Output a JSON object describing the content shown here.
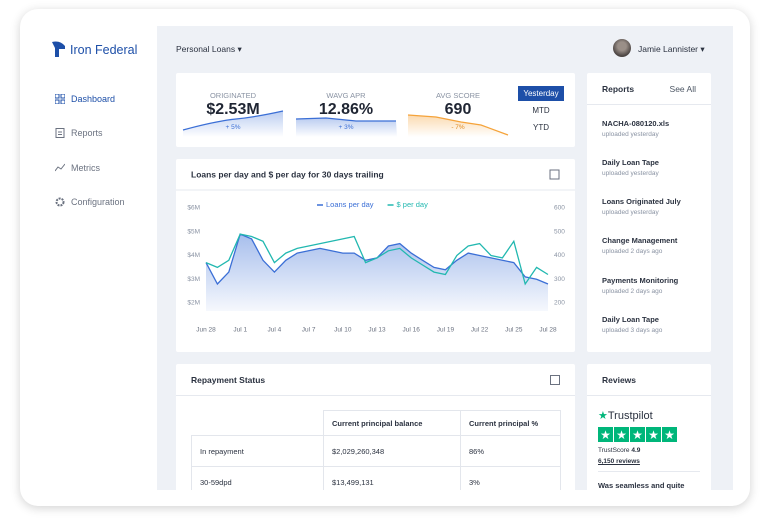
{
  "sidebar": {
    "brand": "Iron Federal",
    "nav": [
      "Dashboard",
      "Reports",
      "Metrics",
      "Configuration"
    ]
  },
  "topbar": {
    "product": "Personal Loans",
    "user": "Jamie Lannister"
  },
  "kpis": [
    {
      "label": "ORIGINATED",
      "value": "$2.53M",
      "change": "+ 5%"
    },
    {
      "label": "WAVG APR",
      "value": "12.86%",
      "change": "+ 3%"
    },
    {
      "label": "AVG SCORE",
      "value": "690",
      "change": "- 7%"
    }
  ],
  "periods": [
    "Yesterday",
    "MTD",
    "YTD"
  ],
  "chart_data": {
    "type": "line",
    "title": "Loans per day and $ per day for 30 days trailing",
    "categories": [
      "Jun 28",
      null,
      null,
      "Jul 1",
      null,
      null,
      "Jul 4",
      null,
      null,
      "Jul 7",
      null,
      null,
      "Jul 10",
      null,
      null,
      "Jul 13",
      null,
      null,
      "Jul 16",
      null,
      null,
      "Jul 19",
      null,
      null,
      "Jul 22",
      null,
      null,
      "Jul 25",
      null,
      null,
      "Jul 28"
    ],
    "series": [
      {
        "name": "Loans per day",
        "color": "#3b6fd6",
        "axis": "y2",
        "values": [
          370,
          280,
          330,
          490,
          470,
          380,
          330,
          380,
          410,
          420,
          430,
          420,
          410,
          410,
          380,
          390,
          440,
          450,
          410,
          380,
          350,
          340,
          380,
          410,
          400,
          390,
          380,
          370,
          310,
          300,
          280
        ]
      },
      {
        "name": "$ per day",
        "color": "#22b8b0",
        "values": [
          3.7,
          3.5,
          3.8,
          4.9,
          4.8,
          4.6,
          3.7,
          4.1,
          4.3,
          4.4,
          4.5,
          4.6,
          4.7,
          4.8,
          3.7,
          3.9,
          4.2,
          4.3,
          3.9,
          3.6,
          3.3,
          3.2,
          4.0,
          4.4,
          4.5,
          4.0,
          3.9,
          4.6,
          2.8,
          3.5,
          3.2
        ]
      }
    ],
    "ylim": [
      2,
      6
    ],
    "yticks": [
      {
        "value": 6,
        "label": "$6M"
      },
      {
        "value": 5,
        "label": "$5M"
      },
      {
        "value": 4,
        "label": "$4M"
      },
      {
        "value": 3,
        "label": "$3M"
      },
      {
        "value": 2,
        "label": "$2M"
      }
    ],
    "y2lim": [
      200,
      600
    ],
    "y2ticks": [
      600,
      500,
      400,
      300,
      200
    ],
    "grid": false
  },
  "repayment": {
    "title": "Repayment Status",
    "columns": [
      "Current principal balance",
      "Current principal %"
    ],
    "rows": [
      [
        "In repayment",
        "$2,029,260,348",
        "86%"
      ],
      [
        "30-59dpd",
        "$13,499,131",
        "3%"
      ]
    ]
  },
  "reports": {
    "title": "Reports",
    "link": "See All",
    "items": [
      {
        "name": "NACHA-080120.xls",
        "date": "uploaded yesterday"
      },
      {
        "name": "Daily Loan Tape",
        "date": "uploaded yesterday"
      },
      {
        "name": "Loans Originated July",
        "date": "uploaded yesterday"
      },
      {
        "name": "Change Management",
        "date": "uploaded 2 days ago"
      },
      {
        "name": "Payments Monitoring",
        "date": "uploaded 2 days ago"
      },
      {
        "name": "Daily Loan Tape",
        "date": "uploaded 3 days ago"
      }
    ]
  },
  "reviews": {
    "title": "Reviews",
    "brand": "Trustpilot",
    "score_label": "TrustScore",
    "score": "4.9",
    "count": "6,150 reviews",
    "snippet": "Was seamless and quite"
  }
}
